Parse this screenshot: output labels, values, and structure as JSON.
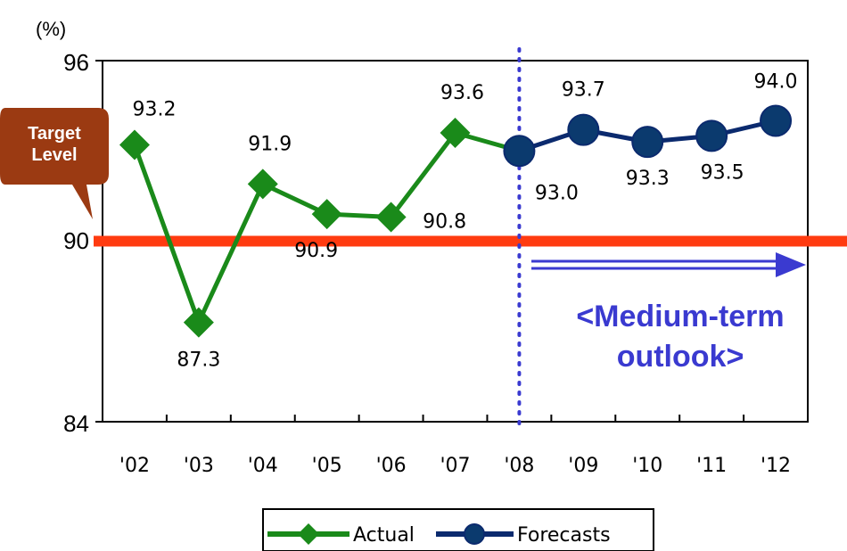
{
  "chart_data": {
    "type": "line",
    "y_unit": "(%)",
    "ylim": [
      84,
      96
    ],
    "yticks": [
      "96",
      "90",
      "84"
    ],
    "categories": [
      "'02",
      "'03",
      "'04",
      "'05",
      "'06",
      "'07",
      "'08",
      "'09",
      "'10",
      "'11",
      "'12"
    ],
    "series": [
      {
        "name": "Actual",
        "color": "#1a8a1a",
        "marker": "diamond",
        "x": [
          "'02",
          "'03",
          "'04",
          "'05",
          "'06",
          "'07",
          "'08"
        ],
        "values": [
          93.2,
          87.3,
          91.9,
          90.9,
          90.8,
          93.6,
          93.0
        ]
      },
      {
        "name": "Forecasts",
        "color": "#0b2a6e",
        "marker": "circle",
        "x": [
          "'08",
          "'09",
          "'10",
          "'11",
          "'12"
        ],
        "values": [
          93.0,
          93.7,
          93.3,
          93.5,
          94.0
        ]
      }
    ],
    "data_labels": [
      {
        "text": "93.2",
        "cat": "'02"
      },
      {
        "text": "87.3",
        "cat": "'03"
      },
      {
        "text": "91.9",
        "cat": "'04"
      },
      {
        "text": "90.9",
        "cat": "'05"
      },
      {
        "text": "90.8",
        "cat": "'06"
      },
      {
        "text": "93.6",
        "cat": "'07"
      },
      {
        "text": "93.0",
        "cat": "'08"
      },
      {
        "text": "93.7",
        "cat": "'09"
      },
      {
        "text": "93.3",
        "cat": "'10"
      },
      {
        "text": "93.5",
        "cat": "'11"
      },
      {
        "text": "94.0",
        "cat": "'12"
      }
    ],
    "target_line": {
      "value": 90,
      "color": "#ff3b10"
    },
    "target_label": {
      "line1": "Target",
      "line2": "Level",
      "color": "#9b3a12"
    },
    "divider_at": "'08",
    "divider_color": "#3a3ad0",
    "outlook_label": {
      "line1": "<Medium-term",
      "line2": "outlook>"
    },
    "legend": {
      "placement": "bottom",
      "items": [
        "Actual",
        "Forecasts"
      ]
    }
  }
}
